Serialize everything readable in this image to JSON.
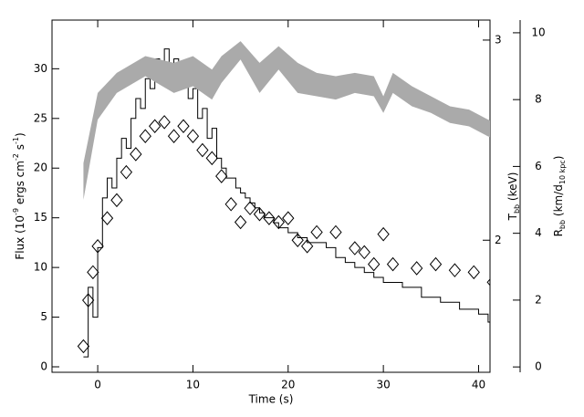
{
  "chart_data": {
    "type": "line",
    "xlabel": "Time (s)",
    "ylabel": [
      "Flux (10",
      "-9",
      " ergs cm",
      "-2",
      " s",
      "-1",
      ")"
    ],
    "y2label": [
      "T",
      "bb",
      " (keV)"
    ],
    "y3label": [
      "R",
      "bb",
      " (km/d",
      "10 kpc",
      ")"
    ],
    "xlim": [
      -4.8,
      41.2
    ],
    "xticks": [
      0,
      10,
      20,
      30,
      40
    ],
    "ylim": [
      -0.55,
      34.9
    ],
    "yticks": [
      0,
      5,
      10,
      15,
      20,
      25,
      30
    ],
    "y2lim": [
      1.34,
      3.1
    ],
    "y2ticks": [
      2,
      3
    ],
    "y3lim": [
      -0.16,
      10.38
    ],
    "y3ticks": [
      0,
      2,
      4,
      6,
      8,
      10
    ],
    "series": [
      {
        "style": "step",
        "axis": "y",
        "color": "#000000",
        "bins": [
          -1.5,
          -1,
          -0.5,
          0,
          0.5,
          1,
          1.5,
          2,
          2.5,
          3,
          3.5,
          4,
          4.5,
          5,
          5.5,
          6,
          6.5,
          7,
          7.5,
          8,
          8.5,
          9,
          9.5,
          10,
          10.5,
          11,
          11.5,
          12,
          12.5,
          13,
          13.5,
          14,
          14.5,
          15,
          15.5,
          16,
          16.5,
          17,
          17.5,
          18,
          18.5,
          19,
          19.5,
          20,
          21,
          22,
          23,
          24,
          25,
          26,
          27,
          28,
          29,
          30,
          32,
          34,
          36,
          38,
          40,
          41,
          42
        ],
        "values": [
          1,
          8,
          5,
          12,
          17,
          19,
          18,
          21,
          23,
          22,
          25,
          27,
          26,
          29,
          28,
          31,
          30,
          32,
          29,
          31,
          28,
          30,
          27,
          28,
          25,
          26,
          23,
          24,
          21,
          20,
          19,
          19,
          18,
          17.5,
          17,
          16.5,
          16,
          15.5,
          15,
          15,
          14.5,
          14,
          14,
          13.5,
          13,
          12.5,
          12.5,
          12,
          11,
          10.5,
          10,
          9.5,
          9,
          8.5,
          8,
          7,
          6.5,
          5.8,
          5.3,
          4.5
        ]
      },
      {
        "style": "diamond",
        "axis": "y2",
        "color": "#000000",
        "x": [
          -1.5,
          -1,
          -0.5,
          0,
          1,
          2,
          3,
          4,
          5,
          6,
          7,
          8,
          9,
          10,
          11,
          12,
          13,
          14,
          15,
          16,
          17,
          18,
          19,
          20,
          21,
          22,
          23,
          25,
          27,
          28,
          29,
          30,
          31,
          33.5,
          35.5,
          37.5,
          39.5,
          41.5
        ],
        "values": [
          1.47,
          1.7,
          1.84,
          1.97,
          2.11,
          2.2,
          2.34,
          2.43,
          2.52,
          2.57,
          2.59,
          2.52,
          2.57,
          2.52,
          2.45,
          2.41,
          2.32,
          2.18,
          2.09,
          2.16,
          2.13,
          2.11,
          2.09,
          2.11,
          2.0,
          1.97,
          2.04,
          2.04,
          1.96,
          1.94,
          1.88,
          2.03,
          1.88,
          1.86,
          1.88,
          1.85,
          1.84,
          1.79
        ]
      },
      {
        "style": "band",
        "axis": "y3",
        "color": "#aaaaaa",
        "x": [
          -1.5,
          0,
          2,
          5,
          8,
          10,
          12,
          13,
          15,
          17,
          19,
          21,
          23,
          25,
          27,
          29,
          30,
          31,
          33,
          35,
          37,
          39,
          41,
          42
        ],
        "low": [
          5.0,
          7.4,
          8.2,
          8.7,
          8.2,
          8.4,
          8.0,
          8.5,
          9.2,
          8.2,
          8.9,
          8.2,
          8.1,
          8.0,
          8.2,
          8.1,
          7.6,
          8.2,
          7.8,
          7.6,
          7.3,
          7.2,
          6.9,
          6.8
        ],
        "high": [
          6.1,
          8.2,
          8.8,
          9.3,
          9.1,
          9.3,
          8.9,
          9.3,
          9.75,
          9.1,
          9.6,
          9.1,
          8.8,
          8.7,
          8.8,
          8.7,
          8.1,
          8.8,
          8.4,
          8.1,
          7.8,
          7.7,
          7.4,
          7.3
        ]
      }
    ]
  }
}
